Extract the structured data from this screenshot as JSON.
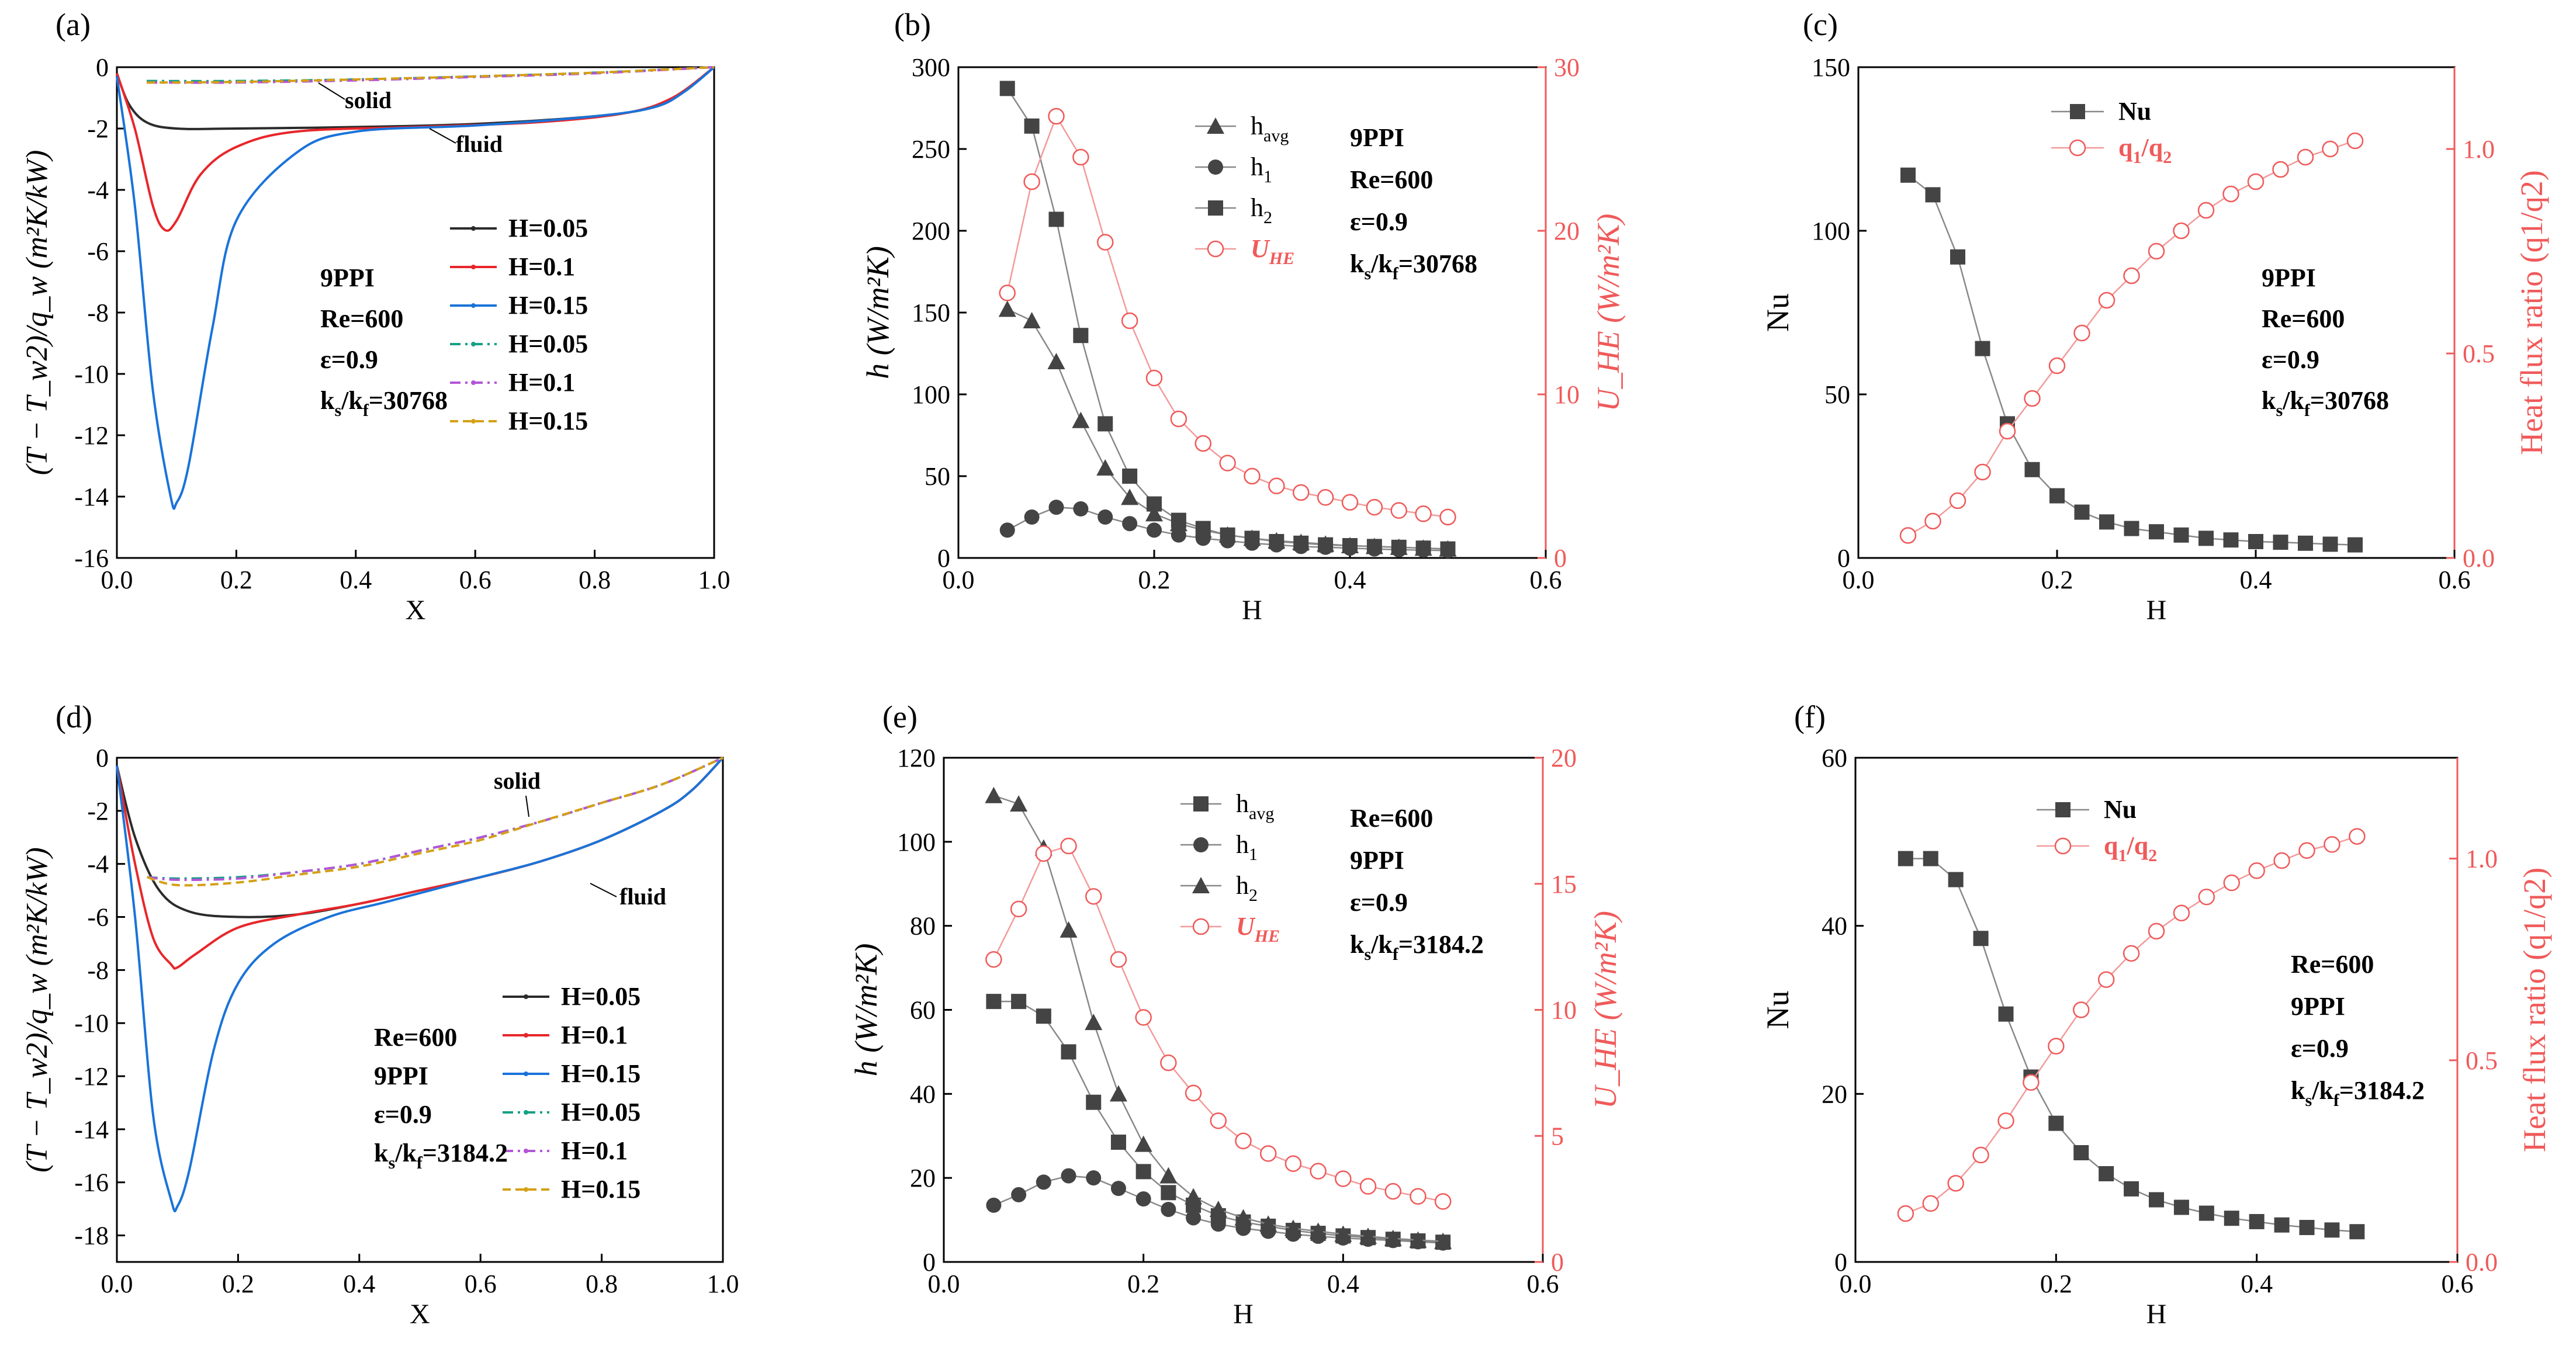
{
  "chart_data": [
    {
      "panel": "(a)",
      "type": "line",
      "xlabel": "X",
      "ylabel": "(T − T_w2)/q_w (m²K/kW)",
      "xlim": [
        0,
        1
      ],
      "ylim": [
        -16,
        0
      ],
      "xticks": [
        0.0,
        0.2,
        0.4,
        0.6,
        0.8,
        1.0
      ],
      "yticks": [
        0,
        -2,
        -4,
        -6,
        -8,
        -10,
        -12,
        -14,
        -16
      ],
      "legend": [
        {
          "label": "H=0.05",
          "color": "#2b2b2b",
          "dash": "solid"
        },
        {
          "label": "H=0.1",
          "color": "#e8262a",
          "dash": "solid"
        },
        {
          "label": "H=0.15",
          "color": "#1a73d9",
          "dash": "solid"
        },
        {
          "label": "H=0.05",
          "color": "#16a085",
          "dash": "dashdot"
        },
        {
          "label": "H=0.1",
          "color": "#b455d6",
          "dash": "dashdot"
        },
        {
          "label": "H=0.15",
          "color": "#d4a017",
          "dash": "dash"
        }
      ],
      "annotations": [
        "solid",
        "fluid"
      ],
      "info": [
        "9PPI",
        "Re=600",
        "ε=0.9",
        "ks/kf=30768"
      ],
      "series": [
        {
          "name": "H=0.05",
          "x": [
            0,
            0.02,
            0.05,
            0.1,
            0.2,
            0.4,
            0.6,
            0.8,
            0.9,
            0.95,
            1.0
          ],
          "y": [
            -0.2,
            -1.2,
            -1.8,
            -2.0,
            -2.0,
            -1.95,
            -1.85,
            -1.6,
            -1.3,
            -0.8,
            0
          ]
        },
        {
          "name": "H=0.1",
          "x": [
            0,
            0.03,
            0.06,
            0.08,
            0.1,
            0.14,
            0.2,
            0.3,
            0.5,
            0.7,
            0.85,
            0.93,
            1.0
          ],
          "y": [
            -0.2,
            -2.0,
            -4.5,
            -5.3,
            -5.0,
            -3.5,
            -2.6,
            -2.1,
            -1.95,
            -1.8,
            -1.5,
            -1.0,
            0
          ]
        },
        {
          "name": "H=0.15",
          "x": [
            0,
            0.03,
            0.06,
            0.09,
            0.1,
            0.12,
            0.16,
            0.2,
            0.3,
            0.4,
            0.6,
            0.8,
            0.9,
            0.95,
            1.0
          ],
          "y": [
            -0.3,
            -4.5,
            -10.5,
            -14.0,
            -14.2,
            -13.0,
            -8.5,
            -5.0,
            -2.8,
            -2.1,
            -1.9,
            -1.6,
            -1.3,
            -0.8,
            0
          ]
        },
        {
          "name": "H=0.05",
          "x": [
            0.05,
            0.2,
            0.4,
            0.6,
            0.8,
            1.0
          ],
          "y": [
            -0.45,
            -0.45,
            -0.4,
            -0.3,
            -0.18,
            0
          ]
        },
        {
          "name": "H=0.1",
          "x": [
            0.05,
            0.2,
            0.4,
            0.6,
            0.8,
            1.0
          ],
          "y": [
            -0.5,
            -0.5,
            -0.43,
            -0.32,
            -0.2,
            0
          ]
        },
        {
          "name": "H=0.15",
          "x": [
            0.05,
            0.2,
            0.4,
            0.6,
            0.8,
            1.0
          ],
          "y": [
            -0.5,
            -0.48,
            -0.4,
            -0.3,
            -0.18,
            0
          ]
        }
      ]
    },
    {
      "panel": "(b)",
      "type": "line",
      "xlabel": "H",
      "ylabel": "h (W/m²K)",
      "y2label": "U_HE (W/m²K)",
      "xlim": [
        0,
        0.6
      ],
      "ylim": [
        0,
        300
      ],
      "y2lim": [
        0,
        30
      ],
      "xticks": [
        0.0,
        0.2,
        0.4,
        0.6
      ],
      "yticks": [
        0,
        50,
        100,
        150,
        200,
        250,
        300
      ],
      "y2ticks": [
        0,
        10,
        20,
        30
      ],
      "info": [
        "9PPI",
        "Re=600",
        "ε=0.9",
        "ks/kf=30768"
      ],
      "x": [
        0.05,
        0.075,
        0.1,
        0.125,
        0.15,
        0.175,
        0.2,
        0.225,
        0.25,
        0.275,
        0.3,
        0.325,
        0.35,
        0.375,
        0.4,
        0.425,
        0.45,
        0.475,
        0.5
      ],
      "series": [
        {
          "name": "h_avg",
          "marker": "triangle",
          "axis": "left",
          "values": [
            152,
            145,
            120,
            84,
            55,
            37,
            27,
            21,
            17,
            14,
            12,
            10.5,
            9.5,
            8.5,
            7.5,
            7,
            6.5,
            6,
            5.5
          ]
        },
        {
          "name": "h_1",
          "marker": "circle",
          "axis": "left",
          "values": [
            17,
            25,
            31,
            30,
            25,
            21,
            17,
            14,
            12,
            10.5,
            9,
            8,
            7,
            6.5,
            6,
            5.5,
            5,
            4.8,
            4.5
          ]
        },
        {
          "name": "h_2",
          "marker": "square",
          "axis": "left",
          "values": [
            287,
            264,
            207,
            136,
            82,
            50,
            33,
            23,
            18,
            14,
            12,
            10,
            9,
            8,
            7.5,
            7,
            6.5,
            6,
            5.5
          ]
        },
        {
          "name": "U_HE",
          "marker": "open-circle",
          "axis": "right",
          "values": [
            16.2,
            23,
            27,
            24.5,
            19.3,
            14.5,
            11,
            8.5,
            7,
            5.8,
            5,
            4.4,
            4,
            3.7,
            3.4,
            3.1,
            2.9,
            2.7,
            2.5
          ]
        }
      ]
    },
    {
      "panel": "(c)",
      "type": "line",
      "xlabel": "H",
      "ylabel": "Nu",
      "y2label": "Heat flux ratio (q1/q2)",
      "xlim": [
        0,
        0.6
      ],
      "ylim": [
        0,
        150
      ],
      "y2lim": [
        0,
        1.2
      ],
      "xticks": [
        0.0,
        0.2,
        0.4,
        0.6
      ],
      "yticks": [
        0,
        50,
        100,
        150
      ],
      "y2ticks": [
        0.0,
        0.5,
        1.0
      ],
      "info": [
        "9PPI",
        "Re=600",
        "ε=0.9",
        "ks/kf=30768"
      ],
      "x": [
        0.05,
        0.075,
        0.1,
        0.125,
        0.15,
        0.175,
        0.2,
        0.225,
        0.25,
        0.275,
        0.3,
        0.325,
        0.35,
        0.375,
        0.4,
        0.425,
        0.45,
        0.475,
        0.5
      ],
      "series": [
        {
          "name": "Nu",
          "marker": "square",
          "axis": "left",
          "values": [
            117,
            111,
            92,
            64,
            41,
            27,
            19,
            14,
            11,
            9,
            8,
            7,
            6,
            5.5,
            5,
            4.8,
            4.5,
            4.2,
            4
          ]
        },
        {
          "name": "q1/q2",
          "marker": "open-circle",
          "axis": "right",
          "values": [
            0.055,
            0.09,
            0.14,
            0.21,
            0.31,
            0.39,
            0.47,
            0.55,
            0.63,
            0.69,
            0.75,
            0.8,
            0.85,
            0.89,
            0.92,
            0.95,
            0.98,
            1.0,
            1.02
          ]
        }
      ]
    },
    {
      "panel": "(d)",
      "type": "line",
      "xlabel": "X",
      "ylabel": "(T − T_w2)/q_w (m²K/kW)",
      "xlim": [
        0,
        1
      ],
      "ylim": [
        -19,
        0
      ],
      "xticks": [
        0.0,
        0.2,
        0.4,
        0.6,
        0.8,
        1.0
      ],
      "yticks": [
        0,
        -2,
        -4,
        -6,
        -8,
        -10,
        -12,
        -14,
        -16,
        -18
      ],
      "legend": [
        {
          "label": "H=0.05",
          "color": "#2b2b2b",
          "dash": "solid"
        },
        {
          "label": "H=0.1",
          "color": "#e8262a",
          "dash": "solid"
        },
        {
          "label": "H=0.15",
          "color": "#1a73d9",
          "dash": "solid"
        },
        {
          "label": "H=0.05",
          "color": "#16a085",
          "dash": "dashdot"
        },
        {
          "label": "H=0.1",
          "color": "#b455d6",
          "dash": "dashdot"
        },
        {
          "label": "H=0.15",
          "color": "#d4a017",
          "dash": "dash"
        }
      ],
      "annotations": [
        "solid",
        "fluid"
      ],
      "info": [
        "Re=600",
        "9PPI",
        "ε=0.9",
        "ks/kf=3184.2"
      ],
      "series": [
        {
          "name": "H=0.05",
          "x": [
            0,
            0.03,
            0.07,
            0.12,
            0.2,
            0.3,
            0.4,
            0.5,
            0.6,
            0.7,
            0.8,
            0.9,
            0.95,
            1.0
          ],
          "y": [
            -0.3,
            -3.0,
            -5.0,
            -5.8,
            -6.0,
            -5.9,
            -5.5,
            -5.0,
            -4.5,
            -3.9,
            -3.1,
            -2.0,
            -1.2,
            0
          ]
        },
        {
          "name": "H=0.1",
          "x": [
            0,
            0.03,
            0.06,
            0.09,
            0.1,
            0.13,
            0.2,
            0.3,
            0.4,
            0.5,
            0.6,
            0.7,
            0.8,
            0.9,
            0.95,
            1.0
          ],
          "y": [
            -0.3,
            -4.0,
            -6.8,
            -7.8,
            -7.9,
            -7.4,
            -6.4,
            -5.9,
            -5.5,
            -5.0,
            -4.5,
            -3.9,
            -3.1,
            -2.0,
            -1.2,
            0
          ]
        },
        {
          "name": "H=0.15",
          "x": [
            0,
            0.03,
            0.06,
            0.09,
            0.1,
            0.12,
            0.16,
            0.2,
            0.26,
            0.35,
            0.45,
            0.6,
            0.7,
            0.8,
            0.9,
            0.95,
            1.0
          ],
          "y": [
            -0.3,
            -6.0,
            -13.5,
            -16.7,
            -16.9,
            -15.5,
            -11.0,
            -8.5,
            -7.0,
            -6.0,
            -5.4,
            -4.5,
            -3.9,
            -3.1,
            -2.0,
            -1.2,
            0
          ]
        },
        {
          "name": "H=0.05",
          "x": [
            0.05,
            0.1,
            0.2,
            0.3,
            0.4,
            0.5,
            0.6,
            0.7,
            0.8,
            0.9,
            1.0
          ],
          "y": [
            -4.5,
            -4.55,
            -4.5,
            -4.3,
            -4.0,
            -3.5,
            -3.0,
            -2.4,
            -1.7,
            -1.0,
            0
          ]
        },
        {
          "name": "H=0.1",
          "x": [
            0.05,
            0.1,
            0.2,
            0.3,
            0.4,
            0.5,
            0.6,
            0.7,
            0.8,
            0.9,
            1.0
          ],
          "y": [
            -4.5,
            -4.6,
            -4.55,
            -4.3,
            -4.0,
            -3.5,
            -3.0,
            -2.4,
            -1.7,
            -1.0,
            0
          ]
        },
        {
          "name": "H=0.15",
          "x": [
            0.05,
            0.1,
            0.2,
            0.3,
            0.4,
            0.5,
            0.6,
            0.7,
            0.8,
            0.9,
            1.0
          ],
          "y": [
            -4.5,
            -4.8,
            -4.7,
            -4.4,
            -4.1,
            -3.6,
            -3.1,
            -2.4,
            -1.7,
            -1.0,
            0
          ]
        }
      ]
    },
    {
      "panel": "(e)",
      "type": "line",
      "xlabel": "H",
      "ylabel": "h (W/m²K)",
      "y2label": "U_HE (W/m²K)",
      "xlim": [
        0,
        0.6
      ],
      "ylim": [
        0,
        120
      ],
      "y2lim": [
        0,
        20
      ],
      "xticks": [
        0.0,
        0.2,
        0.4,
        0.6
      ],
      "yticks": [
        0,
        20,
        40,
        60,
        80,
        100,
        120
      ],
      "y2ticks": [
        0,
        5,
        10,
        15,
        20
      ],
      "info": [
        "Re=600",
        "9PPI",
        "ε=0.9",
        "ks/kf=3184.2"
      ],
      "x": [
        0.05,
        0.075,
        0.1,
        0.125,
        0.15,
        0.175,
        0.2,
        0.225,
        0.25,
        0.275,
        0.3,
        0.325,
        0.35,
        0.375,
        0.4,
        0.425,
        0.45,
        0.475,
        0.5
      ],
      "series": [
        {
          "name": "h_avg",
          "marker": "square",
          "axis": "left",
          "values": [
            62,
            62,
            58.5,
            50,
            38,
            28.5,
            21.5,
            16.5,
            13.5,
            11,
            9.5,
            8.5,
            7.5,
            6.8,
            6.2,
            5.8,
            5.4,
            5,
            4.7
          ]
        },
        {
          "name": "h_1",
          "marker": "circle",
          "axis": "left",
          "values": [
            13.5,
            16,
            19,
            20.5,
            20,
            17.5,
            15,
            12.5,
            10.5,
            9,
            8,
            7.3,
            6.6,
            6.1,
            5.7,
            5.4,
            5.1,
            4.8,
            4.5
          ]
        },
        {
          "name": "h_2",
          "marker": "triangle",
          "axis": "left",
          "values": [
            111,
            109,
            98.5,
            79,
            57,
            40,
            28,
            20.5,
            15.5,
            12.5,
            10.5,
            9,
            8,
            7.3,
            6.6,
            6.1,
            5.6,
            5.2,
            4.9
          ]
        },
        {
          "name": "U_HE",
          "marker": "open-circle",
          "axis": "right",
          "values": [
            12,
            14,
            16.2,
            16.5,
            14.5,
            12,
            9.7,
            7.9,
            6.7,
            5.6,
            4.8,
            4.3,
            3.9,
            3.6,
            3.3,
            3.0,
            2.8,
            2.6,
            2.4
          ]
        }
      ]
    },
    {
      "panel": "(f)",
      "type": "line",
      "xlabel": "H",
      "ylabel": "Nu",
      "y2label": "Heat flux ratio (q1/q2)",
      "xlim": [
        0,
        0.6
      ],
      "ylim": [
        0,
        60
      ],
      "y2lim": [
        0,
        1.25
      ],
      "xticks": [
        0.0,
        0.2,
        0.4,
        0.6
      ],
      "yticks": [
        0,
        20,
        40,
        60
      ],
      "y2ticks": [
        0.0,
        0.5,
        1.0
      ],
      "info": [
        "Re=600",
        "9PPI",
        "ε=0.9",
        "ks/kf=3184.2"
      ],
      "x": [
        0.05,
        0.075,
        0.1,
        0.125,
        0.15,
        0.175,
        0.2,
        0.225,
        0.25,
        0.275,
        0.3,
        0.325,
        0.35,
        0.375,
        0.4,
        0.425,
        0.45,
        0.475,
        0.5
      ],
      "series": [
        {
          "name": "Nu",
          "marker": "square",
          "axis": "left",
          "values": [
            48,
            48,
            45.5,
            38.5,
            29.5,
            22,
            16.5,
            13,
            10.5,
            8.7,
            7.4,
            6.5,
            5.8,
            5.2,
            4.8,
            4.4,
            4.1,
            3.8,
            3.6
          ]
        },
        {
          "name": "q1/q2",
          "marker": "open-circle",
          "axis": "right",
          "values": [
            0.12,
            0.145,
            0.195,
            0.265,
            0.35,
            0.445,
            0.535,
            0.625,
            0.7,
            0.765,
            0.82,
            0.865,
            0.905,
            0.94,
            0.97,
            0.995,
            1.02,
            1.035,
            1.055
          ]
        }
      ]
    }
  ]
}
